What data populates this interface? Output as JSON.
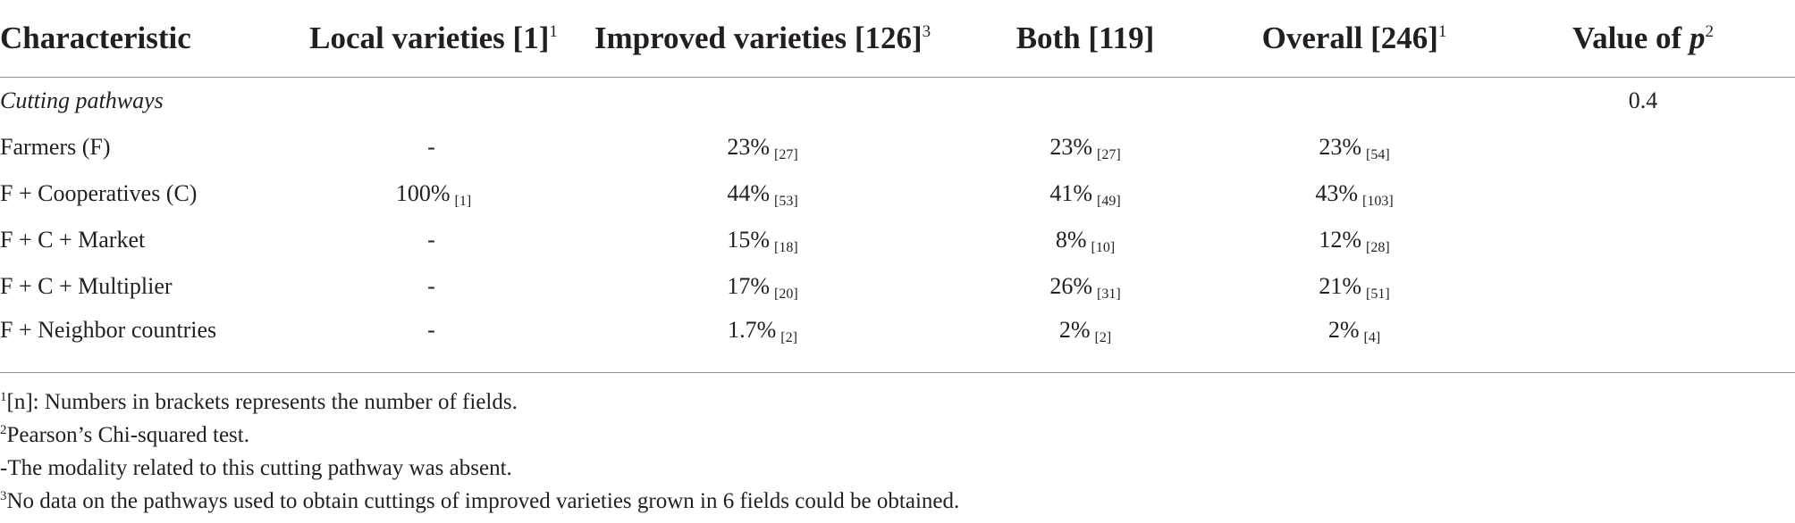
{
  "table": {
    "headers": [
      {
        "text": "Characteristic",
        "sup": ""
      },
      {
        "text": "Local varieties [1]",
        "sup": "1"
      },
      {
        "text": "Improved varieties [126]",
        "sup": "3"
      },
      {
        "text": "Both [119]",
        "sup": ""
      },
      {
        "text": "Overall [246]",
        "sup": "1"
      },
      {
        "text": "Value of ",
        "p": "p",
        "sup": "2"
      }
    ],
    "section": {
      "label": "Cutting pathways",
      "p_value": "0.4"
    },
    "rows": [
      {
        "label": "Farmers (F)",
        "local": {
          "pct": "-",
          "n": ""
        },
        "improved": {
          "pct": "23%",
          "n": "[27]"
        },
        "both": {
          "pct": "23%",
          "n": "[27]"
        },
        "overall": {
          "pct": "23%",
          "n": "[54]"
        }
      },
      {
        "label": "F + Cooperatives (C)",
        "local": {
          "pct": "100%",
          "n": "[1]"
        },
        "improved": {
          "pct": "44%",
          "n": "[53]"
        },
        "both": {
          "pct": "41%",
          "n": "[49]"
        },
        "overall": {
          "pct": "43%",
          "n": "[103]"
        }
      },
      {
        "label": "F + C + Market",
        "local": {
          "pct": "-",
          "n": ""
        },
        "improved": {
          "pct": "15%",
          "n": "[18]"
        },
        "both": {
          "pct": "8%",
          "n": "[10]"
        },
        "overall": {
          "pct": "12%",
          "n": "[28]"
        }
      },
      {
        "label": "F + C + Multiplier",
        "local": {
          "pct": "-",
          "n": ""
        },
        "improved": {
          "pct": "17%",
          "n": "[20]"
        },
        "both": {
          "pct": "26%",
          "n": "[31]"
        },
        "overall": {
          "pct": "21%",
          "n": "[51]"
        }
      },
      {
        "label": "F + Neighbor countries",
        "local": {
          "pct": "-",
          "n": ""
        },
        "improved": {
          "pct": "1.7%",
          "n": "[2]"
        },
        "both": {
          "pct": "2%",
          "n": "[2]"
        },
        "overall": {
          "pct": "2%",
          "n": "[4]"
        }
      }
    ]
  },
  "footnotes": [
    {
      "sup": "1",
      "text": "[n]: Numbers in brackets represents the number of fields."
    },
    {
      "sup": "2",
      "text": "Pearson’s Chi-squared test."
    },
    {
      "sup": "",
      "text": "-The modality related to this cutting pathway was absent."
    },
    {
      "sup": "3",
      "text": "No data on the pathways used to obtain cuttings of improved varieties grown in 6 fields could be obtained."
    }
  ]
}
